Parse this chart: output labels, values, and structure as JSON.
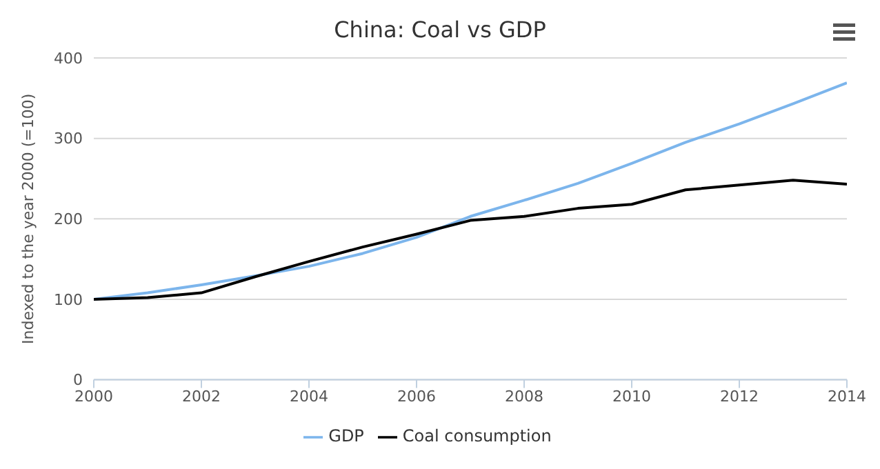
{
  "chart_data": {
    "type": "line",
    "title": "China: Coal vs GDP",
    "ylabel": "Indexed to the year 2000 (=100)",
    "x": [
      2000,
      2001,
      2002,
      2003,
      2004,
      2005,
      2006,
      2007,
      2008,
      2009,
      2010,
      2011,
      2012,
      2013,
      2014
    ],
    "series": [
      {
        "name": "GDP",
        "color": "#7cb5ec",
        "values": [
          100,
          108,
          118,
          129,
          141,
          157,
          177,
          203,
          223,
          244,
          269,
          295,
          318,
          343,
          369
        ]
      },
      {
        "name": "Coal consumption",
        "color": "#000000",
        "values": [
          100,
          102,
          108,
          128,
          147,
          165,
          181,
          198,
          203,
          213,
          218,
          236,
          242,
          248,
          243
        ]
      }
    ],
    "xlim": [
      2000,
      2014
    ],
    "xticks": [
      2000,
      2002,
      2004,
      2006,
      2008,
      2010,
      2012,
      2014
    ],
    "ylim": [
      0,
      400
    ],
    "yticks": [
      0,
      100,
      200,
      300,
      400
    ],
    "grid": "y",
    "legend": "bottom",
    "marker": "none",
    "line_style": "solid"
  }
}
